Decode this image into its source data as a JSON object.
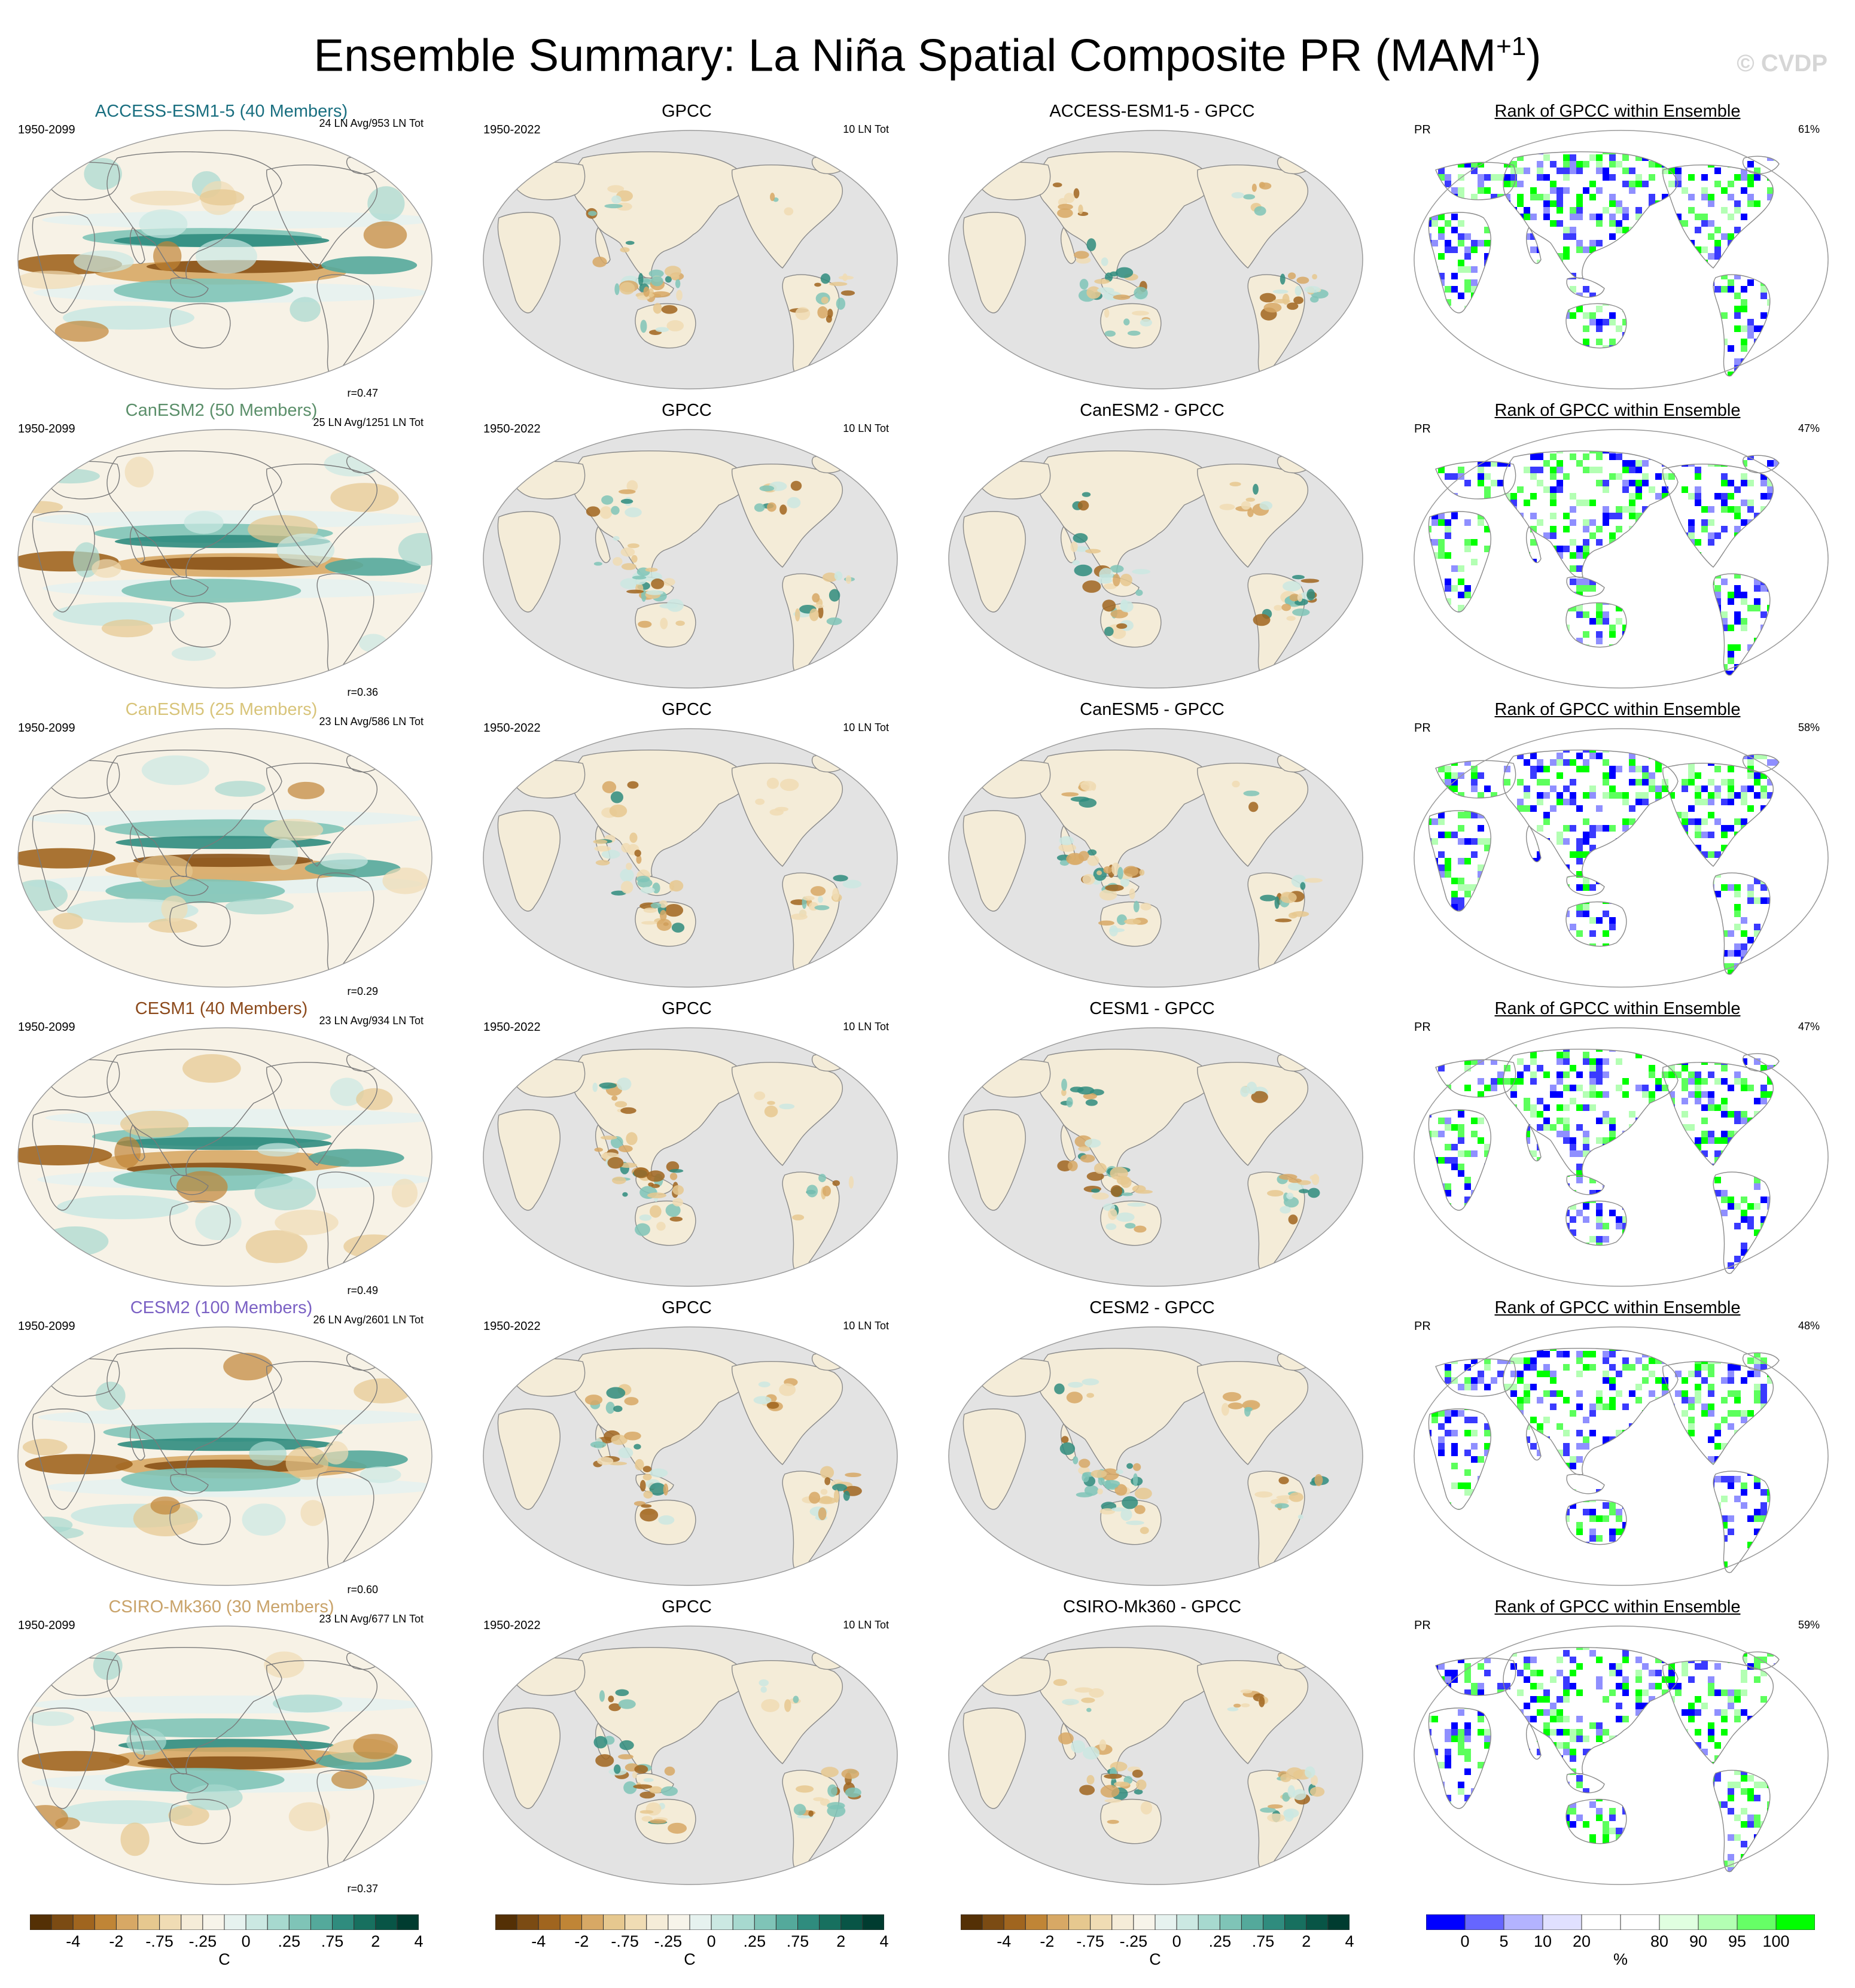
{
  "title": {
    "main": "Ensemble Summary: La Niña Spatial Composite PR (MAM",
    "sup": "+1",
    "end": ")"
  },
  "watermark": "© CVDP",
  "rows": [
    {
      "model": {
        "label": "ACCESS-ESM1-5 (40 Members)",
        "color": "#1a6f80"
      },
      "period": "1950-2099",
      "count": "24 LN Avg/953 LN Tot",
      "r": "r=0.47",
      "obs": {
        "label": "GPCC",
        "period": "1950-2022",
        "count": "10 LN Tot"
      },
      "diff": {
        "label": "ACCESS-ESM1-5 - GPCC"
      },
      "rank": {
        "label": "Rank of GPCC within Ensemble",
        "var": "PR",
        "pct": "61%"
      }
    },
    {
      "model": {
        "label": "CanESM2 (50 Members)",
        "color": "#5b8f6a"
      },
      "period": "1950-2099",
      "count": "25 LN Avg/1251 LN Tot",
      "r": "r=0.36",
      "obs": {
        "label": "GPCC",
        "period": "1950-2022",
        "count": "10 LN Tot"
      },
      "diff": {
        "label": "CanESM2 - GPCC"
      },
      "rank": {
        "label": "Rank of GPCC within Ensemble",
        "var": "PR",
        "pct": "47%"
      }
    },
    {
      "model": {
        "label": "CanESM5 (25 Members)",
        "color": "#d8c47a"
      },
      "period": "1950-2099",
      "count": "23 LN Avg/586 LN Tot",
      "r": "r=0.29",
      "obs": {
        "label": "GPCC",
        "period": "1950-2022",
        "count": "10 LN Tot"
      },
      "diff": {
        "label": "CanESM5 - GPCC"
      },
      "rank": {
        "label": "Rank of GPCC within Ensemble",
        "var": "PR",
        "pct": "58%"
      }
    },
    {
      "model": {
        "label": "CESM1 (40 Members)",
        "color": "#8c4a1c"
      },
      "period": "1950-2099",
      "count": "23 LN Avg/934 LN Tot",
      "r": "r=0.49",
      "obs": {
        "label": "GPCC",
        "period": "1950-2022",
        "count": "10 LN Tot"
      },
      "diff": {
        "label": "CESM1 - GPCC"
      },
      "rank": {
        "label": "Rank of GPCC within Ensemble",
        "var": "PR",
        "pct": "47%"
      }
    },
    {
      "model": {
        "label": "CESM2 (100 Members)",
        "color": "#7b61c4"
      },
      "period": "1950-2099",
      "count": "26 LN Avg/2601 LN Tot",
      "r": "r=0.60",
      "obs": {
        "label": "GPCC",
        "period": "1950-2022",
        "count": "10 LN Tot"
      },
      "diff": {
        "label": "CESM2 - GPCC"
      },
      "rank": {
        "label": "Rank of GPCC within Ensemble",
        "var": "PR",
        "pct": "48%"
      }
    },
    {
      "model": {
        "label": "CSIRO-Mk360 (30 Members)",
        "color": "#c9a36a"
      },
      "period": "1950-2099",
      "count": "23 LN Avg/677 LN Tot",
      "r": "r=0.37",
      "obs": {
        "label": "GPCC",
        "period": "1950-2022",
        "count": "10 LN Tot"
      },
      "diff": {
        "label": "CSIRO-Mk360 - GPCC"
      },
      "rank": {
        "label": "Rank of GPCC within Ensemble",
        "var": "PR",
        "pct": "59%"
      }
    }
  ],
  "colorbars": {
    "anomaly": {
      "unit": "C",
      "colors": [
        "#543005",
        "#7b4b13",
        "#a0651f",
        "#c08536",
        "#d7a865",
        "#e6c88f",
        "#f0dcb4",
        "#f5ecd8",
        "#f7f4ea",
        "#e6f2ef",
        "#cbe8e2",
        "#a7d9cf",
        "#7fc4b7",
        "#54a99b",
        "#2f8c7e",
        "#17705f",
        "#085546",
        "#003c30"
      ],
      "ticks": [
        "-4",
        "-2",
        "-.75",
        "-.25",
        "0",
        ".25",
        ".75",
        "2",
        "4"
      ]
    },
    "rank": {
      "unit": "%",
      "colors": [
        "#0000ff",
        "#6666ff",
        "#b3b3ff",
        "#e0e0ff",
        "#ffffff",
        "#ffffff",
        "#e0ffe0",
        "#b3ffb3",
        "#66ff66",
        "#00ff00"
      ],
      "ticks": [
        "0",
        "5",
        "10",
        "20",
        "80",
        "90",
        "95",
        "100"
      ]
    }
  }
}
